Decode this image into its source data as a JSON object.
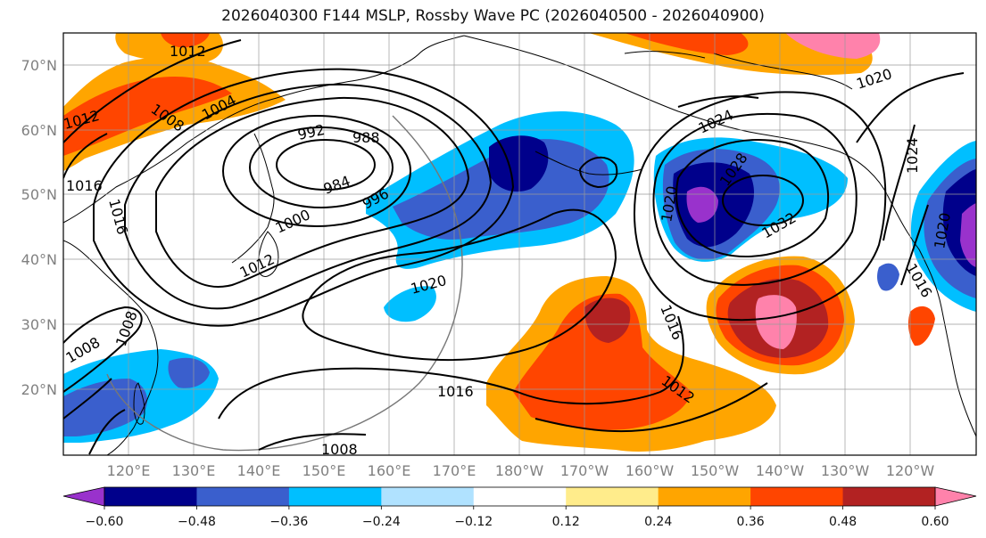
{
  "title": "2026040300 F144 MSLP, Rossby Wave PC (2026040500 - 2026040900)",
  "lat_ticks": [
    "70°N",
    "60°N",
    "50°N",
    "40°N",
    "30°N",
    "20°N"
  ],
  "lon_ticks": [
    "120°E",
    "130°E",
    "140°E",
    "150°E",
    "160°E",
    "170°E",
    "180°W",
    "170°W",
    "160°W",
    "150°W",
    "140°W",
    "130°W",
    "120°W"
  ],
  "contour_labels": [
    "1012",
    "1008",
    "1004",
    "1012",
    "992",
    "988",
    "984",
    "1016",
    "1016",
    "1000",
    "996",
    "1012",
    "1020",
    "1008",
    "1008",
    "1016",
    "1016",
    "1012",
    "1008",
    "1024",
    "1028",
    "1020",
    "1032",
    "1016",
    "1020",
    "1024",
    "1020"
  ],
  "colorbar": {
    "ticks": [
      "−0.60",
      "−0.48",
      "−0.36",
      "−0.24",
      "−0.12",
      "0.12",
      "0.24",
      "0.36",
      "0.48",
      "0.60"
    ],
    "colors": [
      "#9932CC",
      "#00008B",
      "#3A5FCD",
      "#00BFFF",
      "#B0E2FF",
      "#FFFFFF",
      "#FFEC8B",
      "#FFA500",
      "#FF4500",
      "#B22222",
      "#FF82AB"
    ]
  }
}
